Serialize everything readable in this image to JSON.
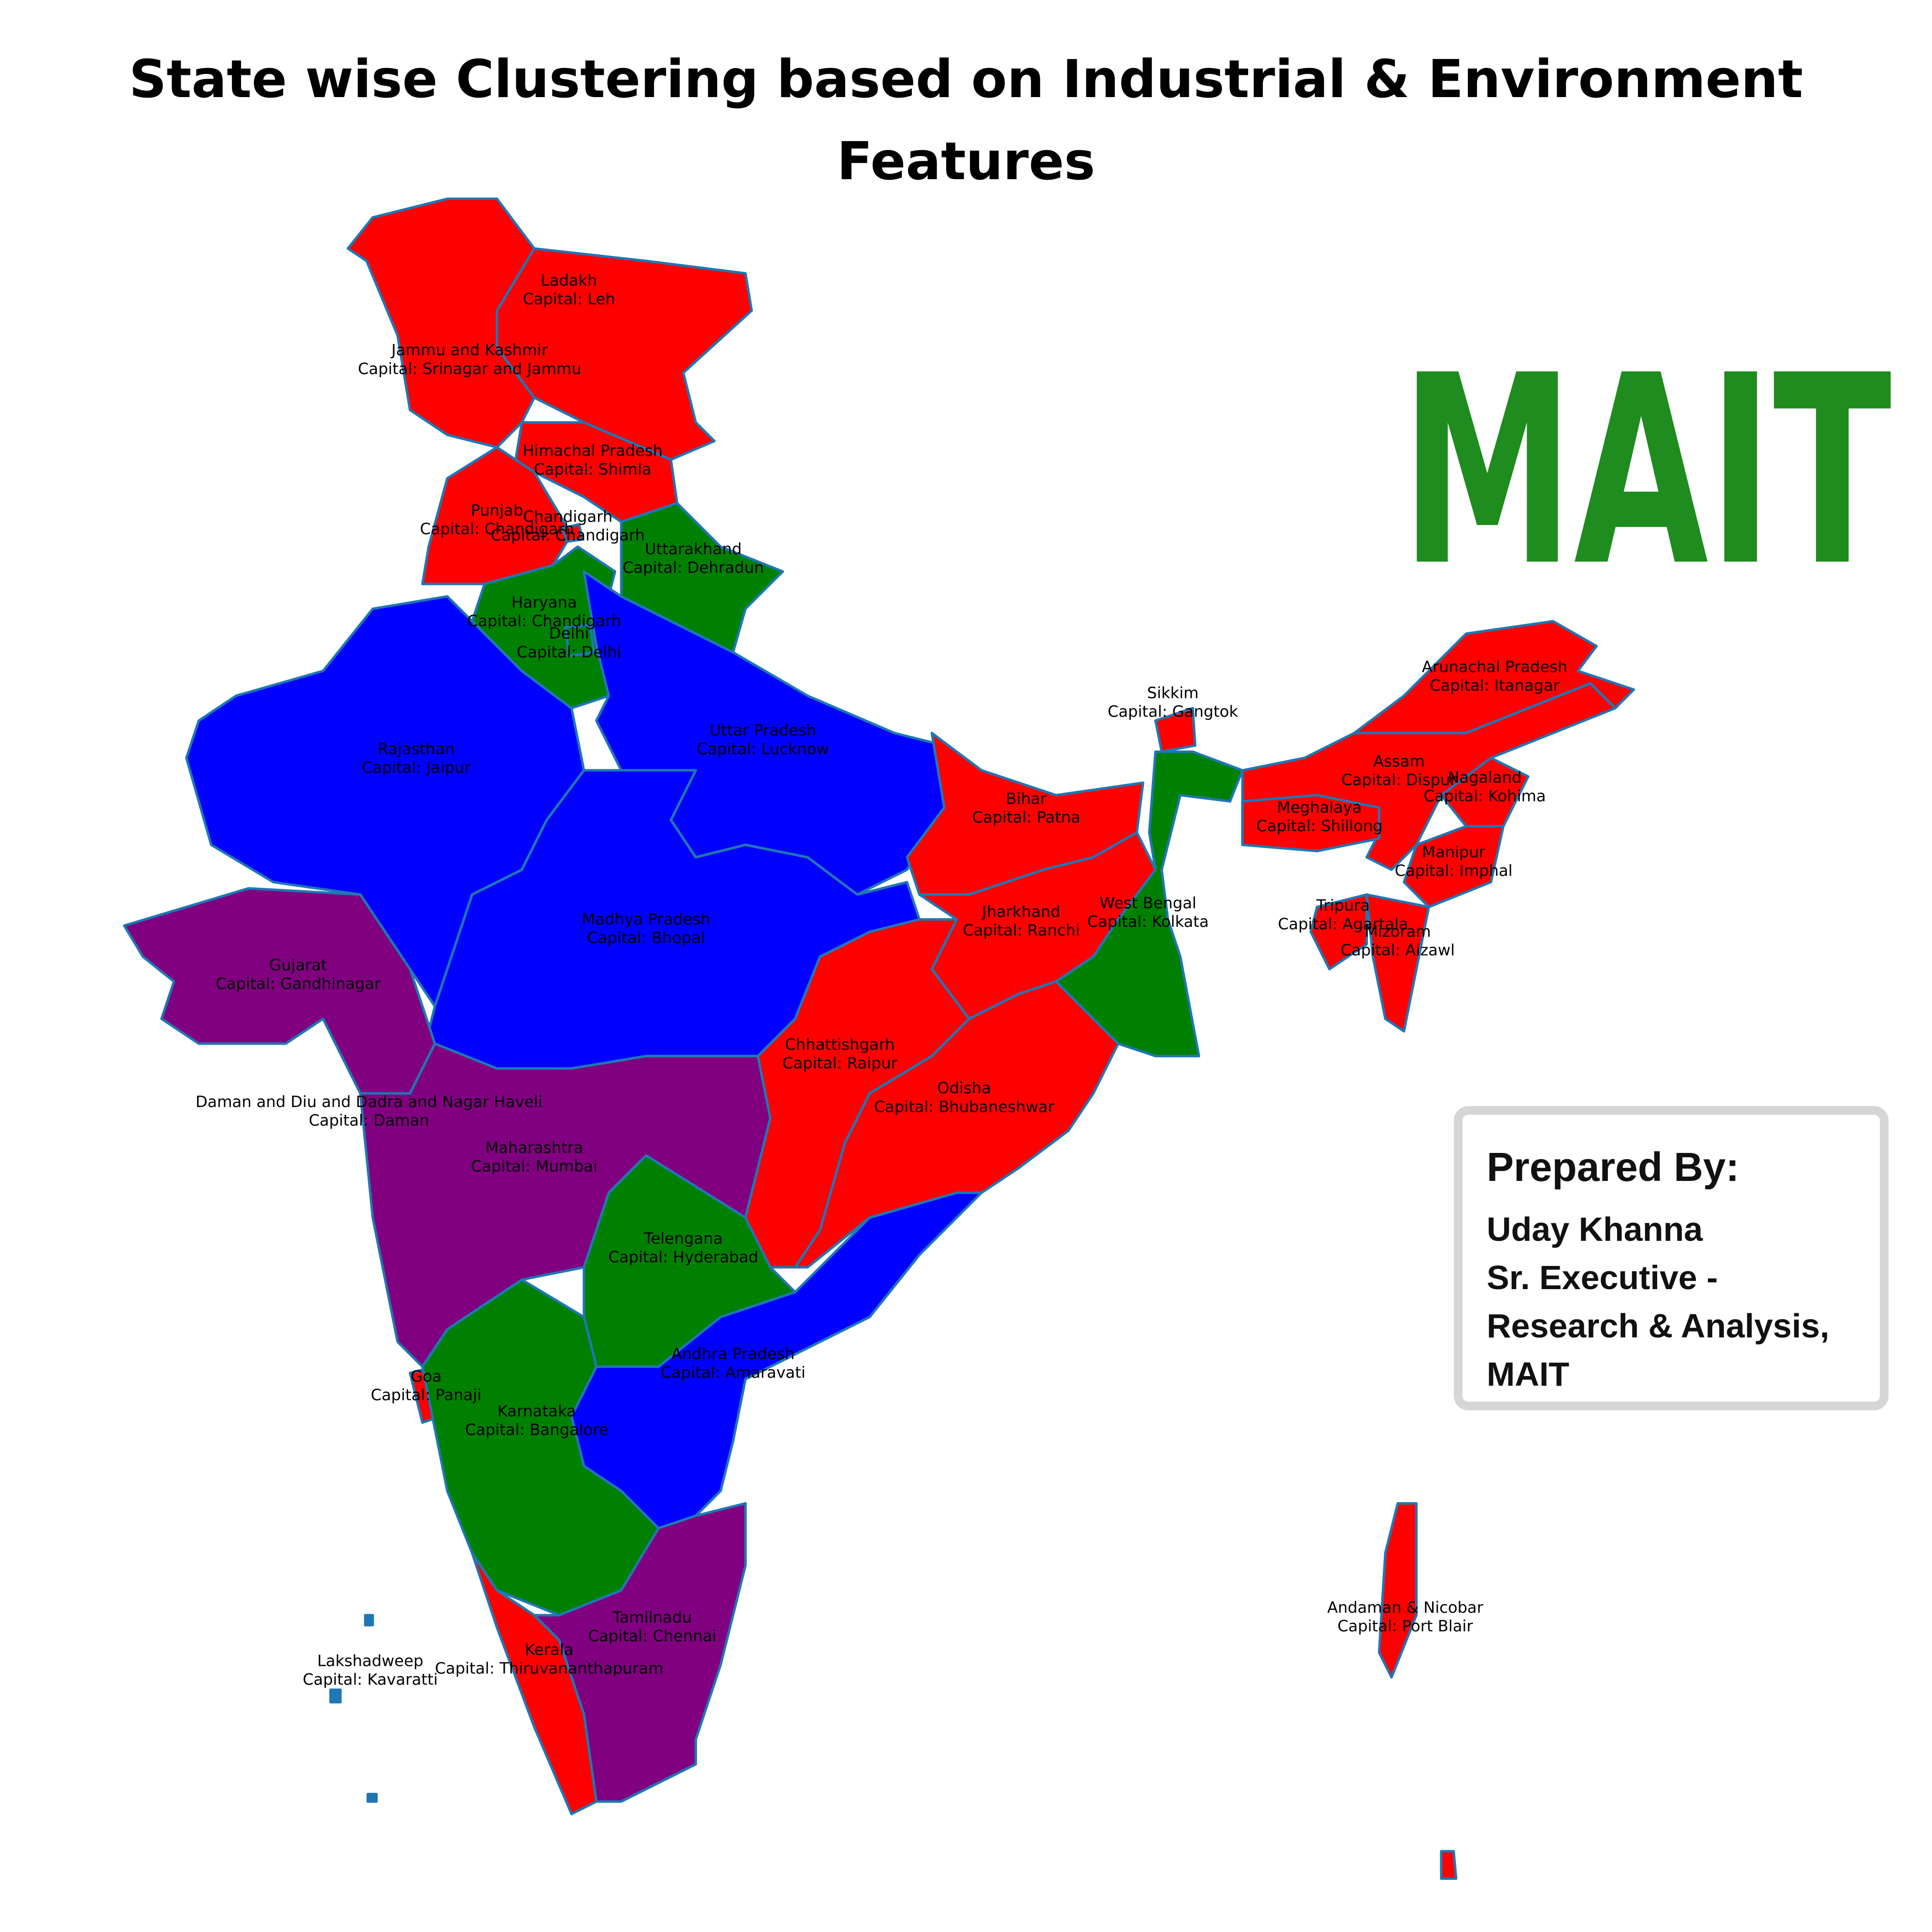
{
  "title": "State wise Clustering based on Industrial & Environment Features",
  "logo": "MAIT",
  "credit": {
    "heading": "Prepared By:",
    "lines": [
      "Uday Khanna",
      "Sr. Executive -",
      "Research & Analysis,",
      "MAIT"
    ]
  },
  "regions": [
    {
      "name": "Ladakh",
      "capital": "Capital: Leh",
      "color": "#ff0000"
    },
    {
      "name": "Jammu and Kashmir",
      "capital": "Capital: Srinagar and Jammu",
      "color": "#ff0000"
    },
    {
      "name": "Himachal Pradesh",
      "capital": "Capital: Shimla",
      "color": "#ff0000"
    },
    {
      "name": "Punjab",
      "capital": "Capital: Chandigarh",
      "color": "#ff0000"
    },
    {
      "name": "Chandigarh",
      "capital": "Capital: Chandigarh",
      "color": "#ff0000"
    },
    {
      "name": "Uttarakhand",
      "capital": "Capital: Dehradun",
      "color": "#008000"
    },
    {
      "name": "Haryana",
      "capital": "Capital: Chandigarh",
      "color": "#008000"
    },
    {
      "name": "Delhi",
      "capital": "Capital: Delhi",
      "color": "#008000"
    },
    {
      "name": "Rajasthan",
      "capital": "Capital: Jaipur",
      "color": "#0000ff"
    },
    {
      "name": "Uttar Pradesh",
      "capital": "Capital: Lucknow",
      "color": "#0000ff"
    },
    {
      "name": "Madhya Pradesh",
      "capital": "Capital: Bhopal",
      "color": "#0000ff"
    },
    {
      "name": "Gujarat",
      "capital": "Capital: Gandhinagar",
      "color": "#800080"
    },
    {
      "name": "Daman and Diu and Dadra and Nagar Haveli",
      "capital": "Capital: Daman",
      "color": "#800080"
    },
    {
      "name": "Maharashtra",
      "capital": "Capital: Mumbai",
      "color": "#800080"
    },
    {
      "name": "Telengana",
      "capital": "Capital: Hyderabad",
      "color": "#008000"
    },
    {
      "name": "Andhra Pradesh",
      "capital": "Capital: Amaravati",
      "color": "#0000ff"
    },
    {
      "name": "Goa",
      "capital": "Capital: Panaji",
      "color": "#ff0000"
    },
    {
      "name": "Karnataka",
      "capital": "Capital: Bangalore",
      "color": "#008000"
    },
    {
      "name": "Tamilnadu",
      "capital": "Capital: Chennai",
      "color": "#800080"
    },
    {
      "name": "Kerala",
      "capital": "Capital: Thiruvananthapuram",
      "color": "#ff0000"
    },
    {
      "name": "Lakshadweep",
      "capital": "Capital: Kavaratti",
      "color": "#1f77b4"
    },
    {
      "name": "Bihar",
      "capital": "Capital: Patna",
      "color": "#ff0000"
    },
    {
      "name": "Jharkhand",
      "capital": "Capital: Ranchi",
      "color": "#ff0000"
    },
    {
      "name": "West Bengal",
      "capital": "Capital: Kolkata",
      "color": "#008000"
    },
    {
      "name": "Chhattishgarh",
      "capital": "Capital: Raipur",
      "color": "#ff0000"
    },
    {
      "name": "Odisha",
      "capital": "Capital: Bhubaneshwar",
      "color": "#ff0000"
    },
    {
      "name": "Sikkim",
      "capital": "Capital: Gangtok",
      "color": "#ff0000"
    },
    {
      "name": "Arunachal Pradesh",
      "capital": "Capital: Itanagar",
      "color": "#ff0000"
    },
    {
      "name": "Assam",
      "capital": "Capital: Dispur",
      "color": "#ff0000"
    },
    {
      "name": "Nagaland",
      "capital": "Capital: Kohima",
      "color": "#ff0000"
    },
    {
      "name": "Meghalaya",
      "capital": "Capital: Shillong",
      "color": "#ff0000"
    },
    {
      "name": "Manipur",
      "capital": "Capital: Imphal",
      "color": "#ff0000"
    },
    {
      "name": "Tripura",
      "capital": "Capital: Agartala",
      "color": "#ff0000"
    },
    {
      "name": "Mizoram",
      "capital": "Capital: Aizawl",
      "color": "#ff0000"
    },
    {
      "name": "Andaman & Nicobar",
      "capital": "Capital: Port Blair",
      "color": "#ff0000"
    }
  ]
}
